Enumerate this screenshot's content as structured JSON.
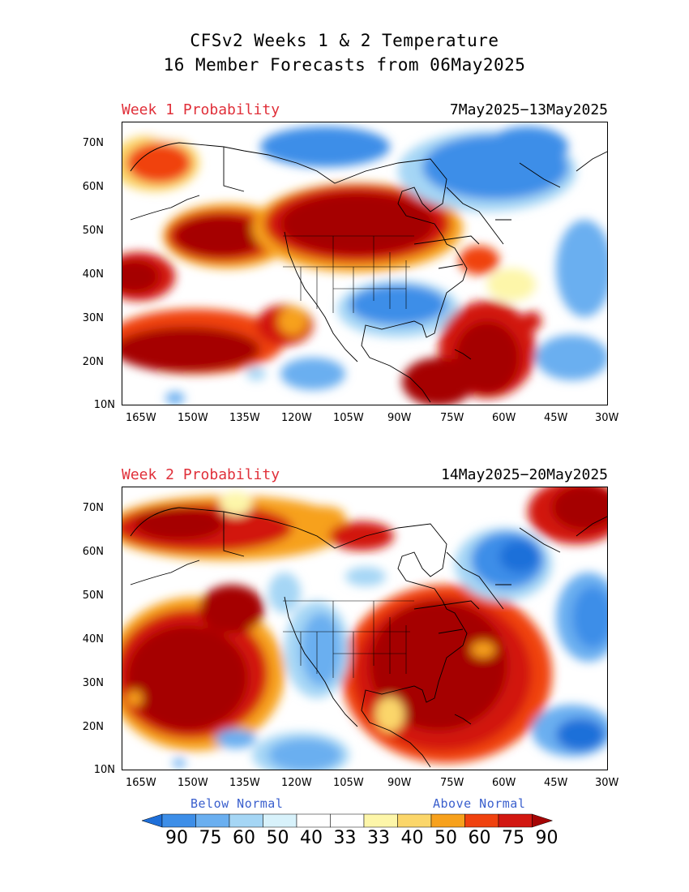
{
  "header": {
    "title_line1": "CFSv2 Weeks 1 & 2 Temperature",
    "title_line2": "16 Member Forecasts from 06May2025"
  },
  "panels": [
    {
      "label": "Week 1 Probability",
      "period": "7May2025−13May2025"
    },
    {
      "label": "Week 2 Probability",
      "period": "14May2025−20May2025"
    }
  ],
  "axes": {
    "lat_labels": [
      "70N",
      "60N",
      "50N",
      "40N",
      "30N",
      "20N",
      "10N"
    ],
    "lon_labels": [
      "165W",
      "150W",
      "135W",
      "120W",
      "105W",
      "90W",
      "75W",
      "60W",
      "45W",
      "30W"
    ]
  },
  "legend": {
    "below_label": "Below Normal",
    "above_label": "Above Normal",
    "values": [
      "90",
      "75",
      "60",
      "50",
      "40",
      "33",
      "33",
      "40",
      "50",
      "60",
      "75",
      "90"
    ],
    "colors": [
      "#1e6fd9",
      "#3d8ee8",
      "#6aaff0",
      "#a5d6f5",
      "#d8f2fb",
      "#ffffff",
      "#ffffff",
      "#fdf6a9",
      "#fbd66a",
      "#f7a11c",
      "#f0420f",
      "#d21711",
      "#a50505"
    ]
  },
  "colors": {
    "above_strong": "#a50505",
    "above_med": "#d21711",
    "above_light": "#f0420f",
    "above_orange": "#f7a11c",
    "above_yellow": "#fbd66a",
    "above_pale": "#fdf6a9",
    "below_pale": "#d8f2fb",
    "below_light": "#a5d6f5",
    "below_med": "#6aaff0",
    "below_strong": "#3d8ee8",
    "below_deep": "#1e6fd9",
    "label_red": "#e0303a",
    "label_blue": "#3a5fcd"
  }
}
